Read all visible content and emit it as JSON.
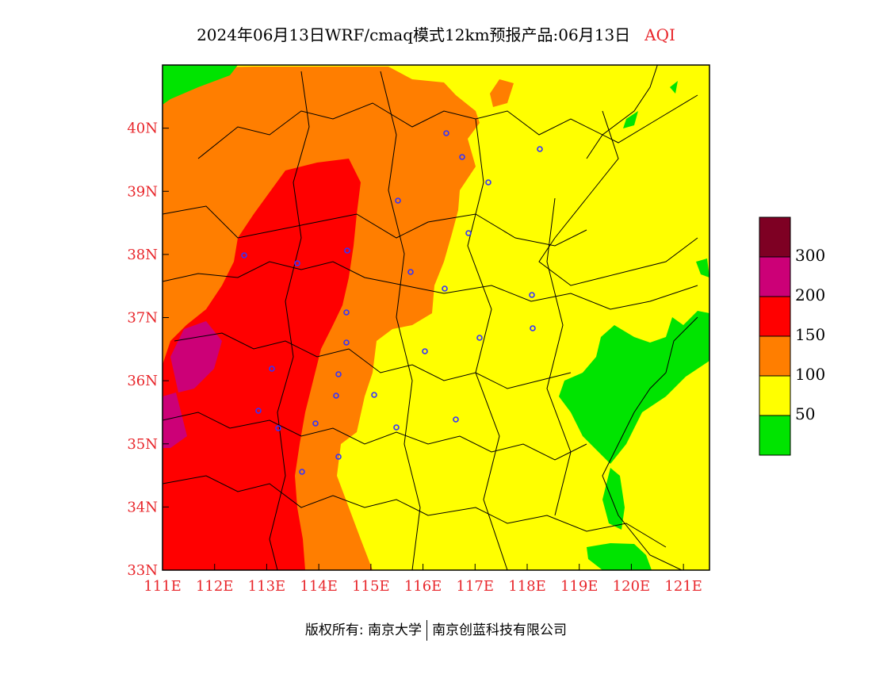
{
  "title": {
    "main": "2024年06月13日WRF/cmaq模式12km预报产品:06月13日",
    "variable": "AQI"
  },
  "map": {
    "lat_labels": [
      "40N",
      "39N",
      "38N",
      "37N",
      "36N",
      "35N",
      "34N",
      "33N"
    ],
    "lon_labels": [
      "111E",
      "112E",
      "113E",
      "114E",
      "115E",
      "116E",
      "117E",
      "118E",
      "119E",
      "120E",
      "121E"
    ],
    "lat_range": [
      33,
      41
    ],
    "lon_range": [
      111,
      121.5
    ]
  },
  "legend": {
    "bins": [
      {
        "label": "",
        "color": "#00e400"
      },
      {
        "label": "50",
        "color": "#ffff00"
      },
      {
        "label": "100",
        "color": "#ff7e00"
      },
      {
        "label": "150",
        "color": "#ff0000"
      },
      {
        "label": "200",
        "color": "#cc0077"
      },
      {
        "label": "300",
        "color": "#7e0023"
      }
    ],
    "tick_labels": [
      "50",
      "100",
      "150",
      "200",
      "300"
    ]
  },
  "footer": {
    "left": "版权所有: 南京大学",
    "right": "南京创蓝科技有限公司"
  }
}
